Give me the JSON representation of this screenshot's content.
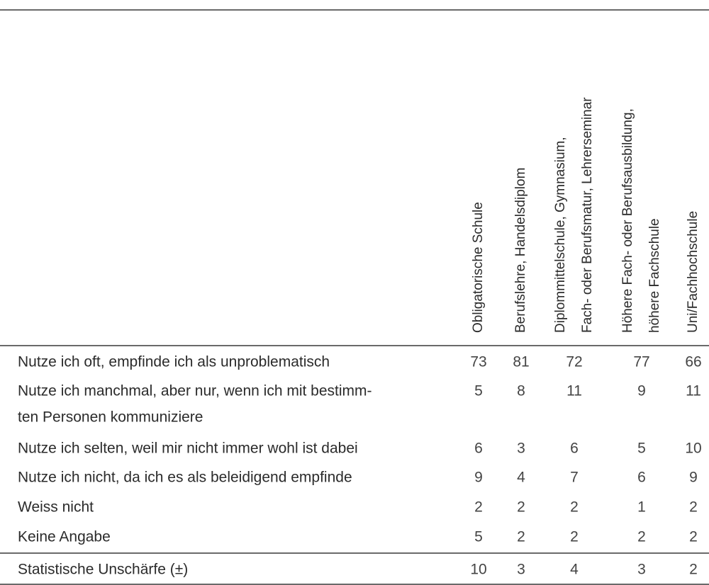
{
  "table": {
    "columns": [
      [
        "Obligatorische Schule"
      ],
      [
        "Berufslehre, Handelsdiplom"
      ],
      [
        "Diplommittelschule, Gymnasium,",
        "Fach- oder Berufsmatur, Lehrerseminar"
      ],
      [
        "Höhere Fach- oder Berufsausbildung,",
        "höhere Fachschule"
      ],
      [
        "Uni/Fachhochschule"
      ]
    ],
    "rows": [
      {
        "label": [
          "Nutze ich oft, empfinde ich als unproblematisch"
        ],
        "values": [
          73,
          81,
          72,
          77,
          66
        ]
      },
      {
        "label": [
          "Nutze ich manchmal, aber nur, wenn ich mit bestimm-",
          "ten Personen kommuniziere"
        ],
        "values": [
          5,
          8,
          11,
          9,
          11
        ]
      },
      {
        "label": [
          "Nutze ich selten, weil mir nicht immer wohl ist dabei"
        ],
        "values": [
          6,
          3,
          6,
          5,
          10
        ]
      },
      {
        "label": [
          "Nutze ich nicht, da ich es als beleidigend empfinde"
        ],
        "values": [
          9,
          4,
          7,
          6,
          9
        ]
      },
      {
        "label": [
          "Weiss nicht"
        ],
        "values": [
          2,
          2,
          2,
          1,
          2
        ]
      },
      {
        "label": [
          "Keine Angabe"
        ],
        "values": [
          5,
          2,
          2,
          2,
          2
        ]
      }
    ],
    "footer": {
      "label": [
        "Statistische Unschärfe (±)"
      ],
      "values": [
        10,
        3,
        4,
        3,
        2
      ]
    }
  }
}
